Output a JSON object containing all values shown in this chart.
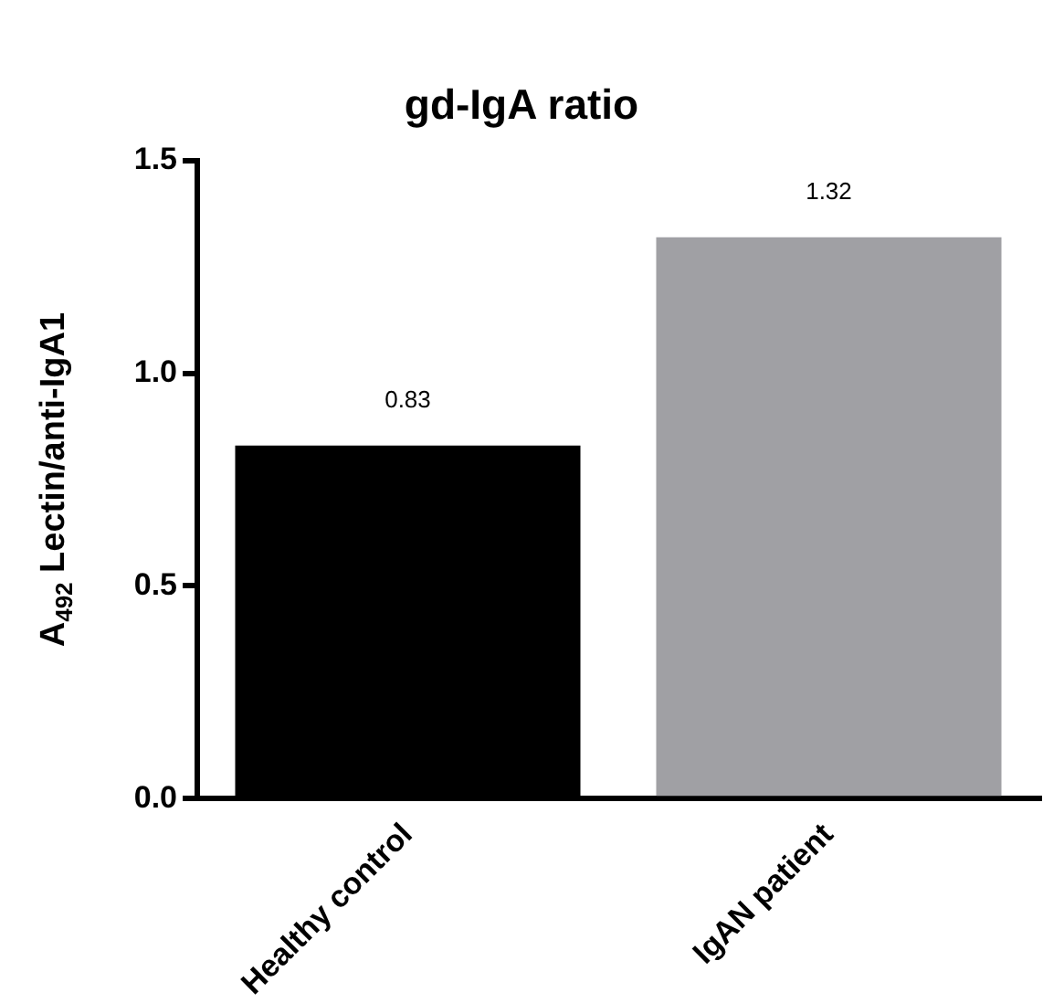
{
  "chart_data": {
    "type": "bar",
    "title": "gd-IgA ratio",
    "ylabel": "A$_{492}$ Lectin/anti-IgA1",
    "categories": [
      "Healthy control",
      "IgAN patient"
    ],
    "values": [
      0.83,
      1.32
    ],
    "colors": [
      "#000000",
      "#a0a0a4"
    ],
    "ylim": [
      0,
      1.5
    ],
    "yticks": [
      {
        "value": 0,
        "label": "0.0"
      },
      0.5,
      {
        "value": 1,
        "label": "1.0"
      },
      1.5
    ],
    "data_labels": true,
    "grid": false,
    "legend": false
  }
}
